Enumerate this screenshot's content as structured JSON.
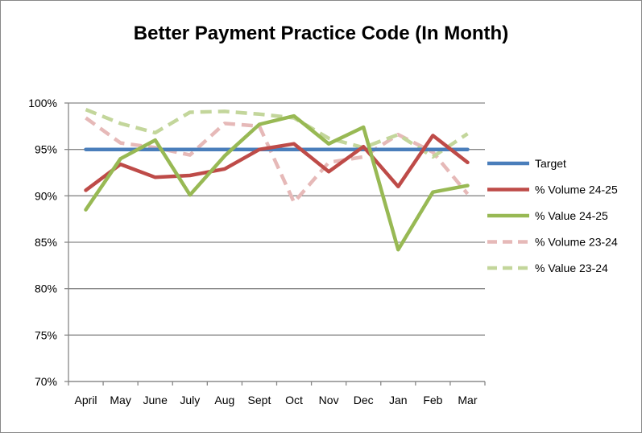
{
  "chart_data": {
    "type": "line",
    "title": "Better Payment Practice Code (In Month)",
    "categories": [
      "April",
      "May",
      "June",
      "July",
      "Aug",
      "Sept",
      "Oct",
      "Nov",
      "Dec",
      "Jan",
      "Feb",
      "Mar"
    ],
    "ylim": [
      0.7,
      1.0
    ],
    "yticks": [
      {
        "value": 1.0,
        "label": "100%"
      },
      {
        "value": 0.95,
        "label": "95%"
      },
      {
        "value": 0.9,
        "label": "90%"
      },
      {
        "value": 0.85,
        "label": "85%"
      },
      {
        "value": 0.8,
        "label": "80%"
      },
      {
        "value": 0.75,
        "label": "75%"
      },
      {
        "value": 0.7,
        "label": "70%"
      }
    ],
    "grid": true,
    "legend_position": "right",
    "series": [
      {
        "name": "Target",
        "color": "#4a7ebb",
        "dashed": false,
        "values": [
          0.95,
          0.95,
          0.95,
          0.95,
          0.95,
          0.95,
          0.95,
          0.95,
          0.95,
          0.95,
          0.95,
          0.95
        ]
      },
      {
        "name": "% Volume 24-25",
        "color": "#be4b48",
        "dashed": false,
        "values": [
          0.906,
          0.934,
          0.92,
          0.922,
          0.929,
          0.95,
          0.956,
          0.926,
          0.953,
          0.91,
          0.965,
          0.936
        ]
      },
      {
        "name": "% Value 24-25",
        "color": "#98b954",
        "dashed": false,
        "values": [
          0.885,
          0.94,
          0.96,
          0.901,
          0.943,
          0.977,
          0.986,
          0.956,
          0.974,
          0.842,
          0.904,
          0.911
        ]
      },
      {
        "name": "% Volume 23-24",
        "color": "#e6b9b8",
        "dashed": true,
        "values": [
          0.984,
          0.957,
          0.952,
          0.944,
          0.978,
          0.975,
          0.893,
          0.936,
          0.942,
          0.966,
          0.947,
          0.902
        ]
      },
      {
        "name": "% Value 23-24",
        "color": "#c3d69b",
        "dashed": true,
        "values": [
          0.993,
          0.978,
          0.968,
          0.99,
          0.991,
          0.988,
          0.984,
          0.962,
          0.952,
          0.966,
          0.942,
          0.967
        ]
      }
    ]
  }
}
